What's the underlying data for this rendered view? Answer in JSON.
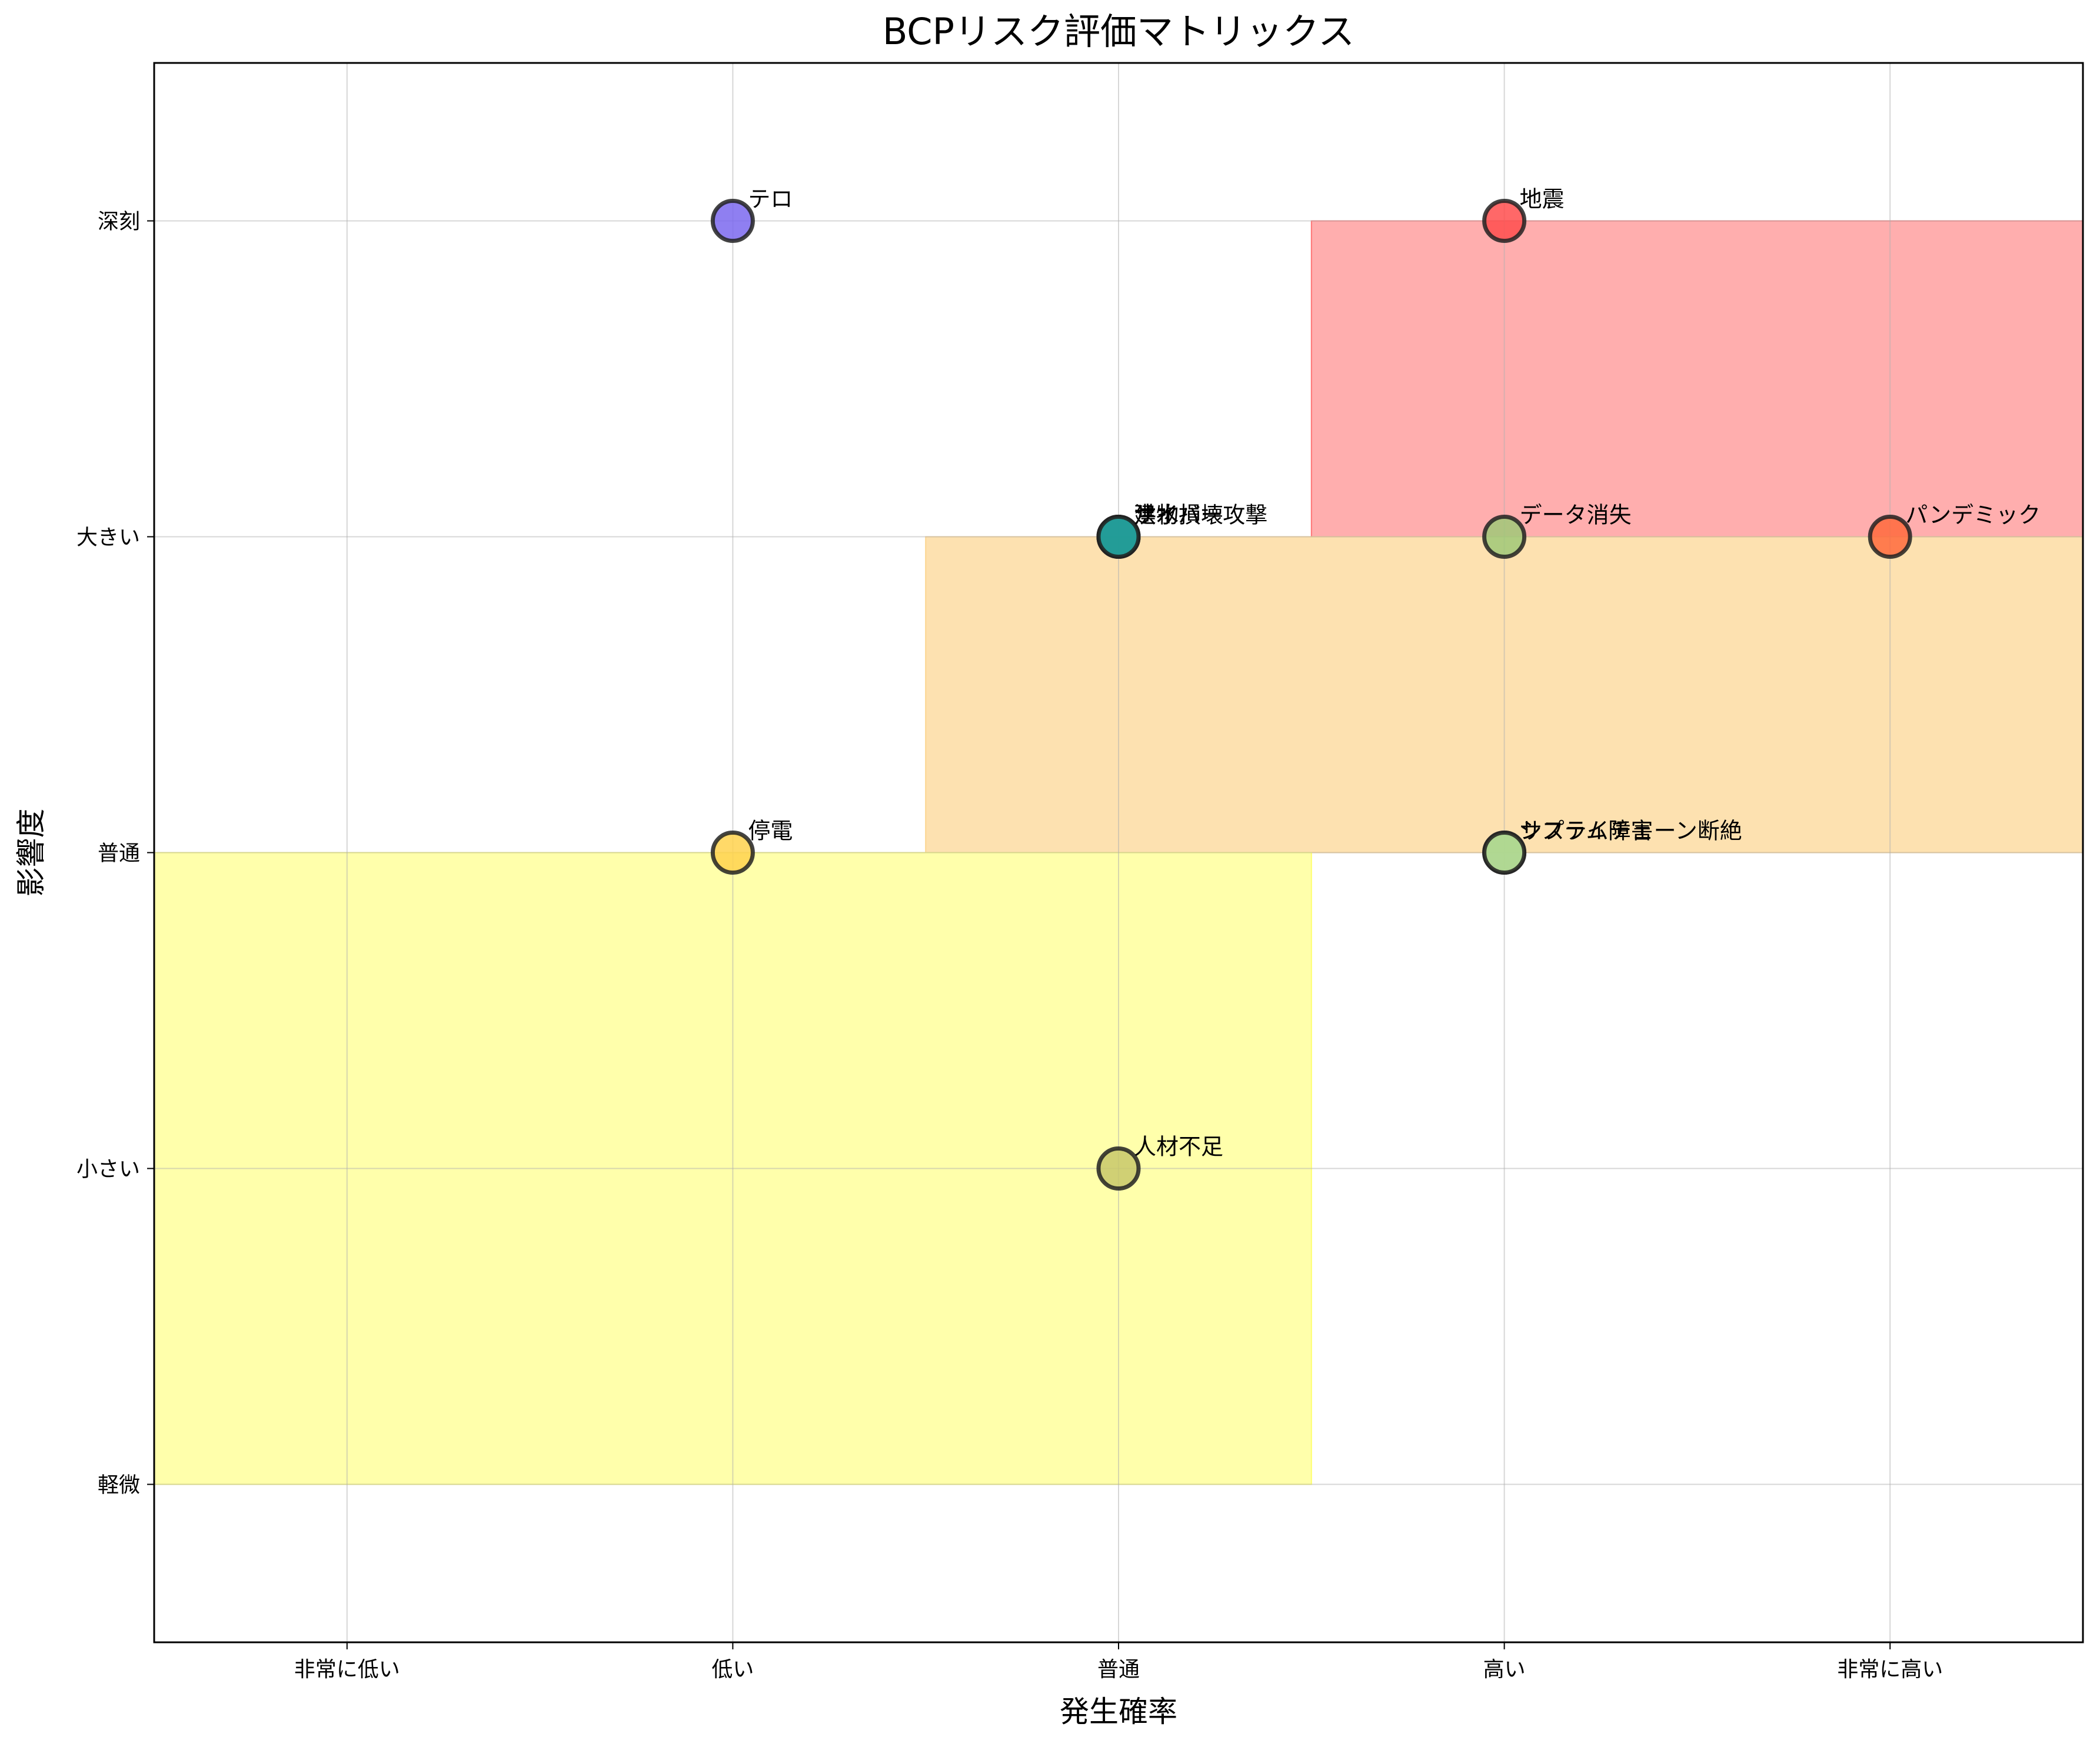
{
  "chart_data": {
    "type": "scatter",
    "title": "BCPリスク評価マトリックス",
    "xlabel": "発生確率",
    "ylabel": "影響度",
    "x_categories": [
      "非常に低い",
      "低い",
      "普通",
      "高い",
      "非常に高い"
    ],
    "y_categories": [
      "軽微",
      "小さい",
      "普通",
      "大きい",
      "深刻"
    ],
    "xlim": [
      0.5,
      5.5
    ],
    "ylim": [
      0.5,
      5.5
    ],
    "grid": true,
    "zones": [
      {
        "name": "high-risk-zone",
        "color": "#ff6b6b",
        "opacity": 0.55,
        "x": [
          3.5,
          5.5
        ],
        "y": [
          4,
          5
        ]
      },
      {
        "name": "medium-risk-zone",
        "color": "#fcd38b",
        "opacity": 0.68,
        "x": [
          2.5,
          5.5
        ],
        "y": [
          3,
          4
        ]
      },
      {
        "name": "low-risk-zone",
        "color": "#ffff66",
        "opacity": 0.55,
        "x": [
          0.5,
          3.5
        ],
        "y": [
          1,
          3
        ]
      }
    ],
    "points": [
      {
        "label": "テロ",
        "x": 2,
        "y": 5,
        "color": "#7b68ee"
      },
      {
        "label": "地震",
        "x": 4,
        "y": 5,
        "color": "#ff4d4d"
      },
      {
        "label": "建物損壊",
        "x": 3,
        "y": 4,
        "color": "#8b8b3a"
      },
      {
        "label": "洪水",
        "x": 3,
        "y": 4,
        "color": "#4a90d9"
      },
      {
        "label": "サイバー攻撃",
        "x": 3,
        "y": 4,
        "color": "#1a9e8f"
      },
      {
        "label": "データ消失",
        "x": 4,
        "y": 4,
        "color": "#a0c878"
      },
      {
        "label": "パンデミック",
        "x": 5,
        "y": 4,
        "color": "#ff6a3d"
      },
      {
        "label": "停電",
        "x": 2,
        "y": 3,
        "color": "#ffd24d"
      },
      {
        "label": "システム障害",
        "x": 4,
        "y": 3,
        "color": "#6bd0c0"
      },
      {
        "label": "サプライチェーン断絶",
        "x": 4,
        "y": 3,
        "color": "#b8d88a"
      },
      {
        "label": "人材不足",
        "x": 3,
        "y": 2,
        "color": "#c8c86a"
      }
    ]
  }
}
